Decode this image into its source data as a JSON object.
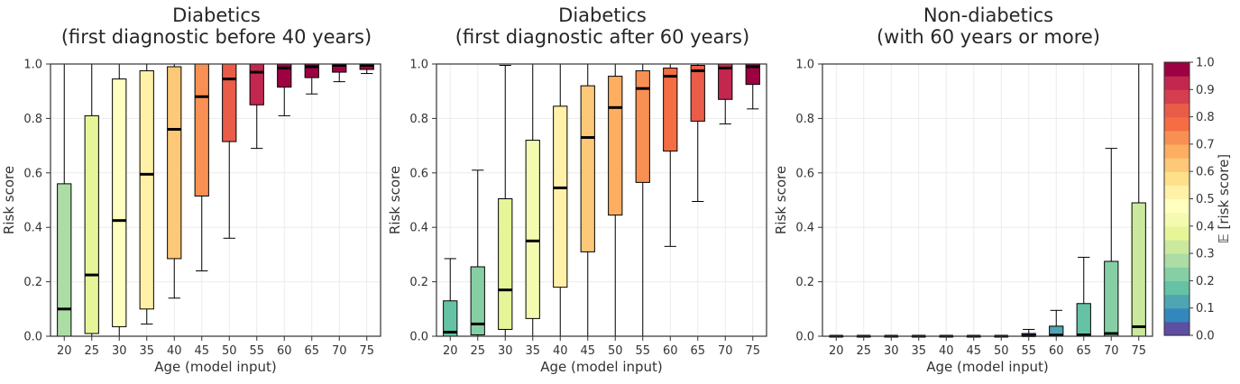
{
  "chart_data": [
    {
      "type": "box",
      "title_lines": [
        "Diabetics",
        "(first diagnostic before 40 years)"
      ],
      "xlabel": "Age (model input)",
      "ylabel": "Risk score",
      "ylim": [
        0,
        1
      ],
      "yticks": [
        "0.0",
        "0.2",
        "0.4",
        "0.6",
        "0.8",
        "1.0"
      ],
      "grid": true,
      "categories": [
        "20",
        "25",
        "30",
        "35",
        "40",
        "45",
        "50",
        "55",
        "60",
        "65",
        "70",
        "75"
      ],
      "boxes": [
        {
          "min": 0.0,
          "q1": 0.0,
          "median": 0.1,
          "q3": 0.56,
          "max": 1.0,
          "mean": 0.26
        },
        {
          "min": 0.0,
          "q1": 0.01,
          "median": 0.225,
          "q3": 0.81,
          "max": 1.0,
          "mean": 0.37
        },
        {
          "min": 0.0,
          "q1": 0.035,
          "median": 0.425,
          "q3": 0.945,
          "max": 1.0,
          "mean": 0.46
        },
        {
          "min": 0.045,
          "q1": 0.1,
          "median": 0.595,
          "q3": 0.975,
          "max": 1.0,
          "mean": 0.52
        },
        {
          "min": 0.14,
          "q1": 0.285,
          "median": 0.76,
          "q3": 0.99,
          "max": 1.0,
          "mean": 0.61
        },
        {
          "min": 0.24,
          "q1": 0.515,
          "median": 0.88,
          "q3": 1.0,
          "max": 1.0,
          "mean": 0.72
        },
        {
          "min": 0.36,
          "q1": 0.715,
          "median": 0.945,
          "q3": 1.0,
          "max": 1.0,
          "mean": 0.83
        },
        {
          "min": 0.69,
          "q1": 0.85,
          "median": 0.97,
          "q3": 1.0,
          "max": 1.0,
          "mean": 0.91
        },
        {
          "min": 0.81,
          "q1": 0.915,
          "median": 0.985,
          "q3": 1.0,
          "max": 1.0,
          "mean": 0.95
        },
        {
          "min": 0.89,
          "q1": 0.95,
          "median": 0.99,
          "q3": 1.0,
          "max": 1.0,
          "mean": 0.97
        },
        {
          "min": 0.935,
          "q1": 0.97,
          "median": 0.995,
          "q3": 1.0,
          "max": 1.0,
          "mean": 0.98
        },
        {
          "min": 0.965,
          "q1": 0.98,
          "median": 0.995,
          "q3": 1.0,
          "max": 1.0,
          "mean": 0.99
        }
      ]
    },
    {
      "type": "box",
      "title_lines": [
        "Diabetics",
        "(first diagnostic after 60 years)"
      ],
      "xlabel": "Age (model input)",
      "ylabel": "Risk score",
      "ylim": [
        0,
        1
      ],
      "yticks": [
        "0.0",
        "0.2",
        "0.4",
        "0.6",
        "0.8",
        "1.0"
      ],
      "grid": true,
      "categories": [
        "20",
        "25",
        "30",
        "35",
        "40",
        "45",
        "50",
        "55",
        "60",
        "65",
        "70",
        "75"
      ],
      "boxes": [
        {
          "min": 0.0,
          "q1": 0.0,
          "median": 0.015,
          "q3": 0.13,
          "max": 0.285,
          "mean": 0.16
        },
        {
          "min": 0.0,
          "q1": 0.005,
          "median": 0.045,
          "q3": 0.255,
          "max": 0.61,
          "mean": 0.23
        },
        {
          "min": 0.0,
          "q1": 0.025,
          "median": 0.17,
          "q3": 0.505,
          "max": 0.995,
          "mean": 0.36
        },
        {
          "min": 0.0,
          "q1": 0.065,
          "median": 0.35,
          "q3": 0.72,
          "max": 1.0,
          "mean": 0.43
        },
        {
          "min": 0.0,
          "q1": 0.18,
          "median": 0.545,
          "q3": 0.845,
          "max": 1.0,
          "mean": 0.53
        },
        {
          "min": 0.0,
          "q1": 0.31,
          "median": 0.73,
          "q3": 0.92,
          "max": 1.0,
          "mean": 0.62
        },
        {
          "min": 0.0,
          "q1": 0.445,
          "median": 0.84,
          "q3": 0.955,
          "max": 1.0,
          "mean": 0.67
        },
        {
          "min": 0.0,
          "q1": 0.565,
          "median": 0.91,
          "q3": 0.975,
          "max": 1.0,
          "mean": 0.71
        },
        {
          "min": 0.33,
          "q1": 0.68,
          "median": 0.955,
          "q3": 0.985,
          "max": 1.0,
          "mean": 0.79
        },
        {
          "min": 0.495,
          "q1": 0.79,
          "median": 0.975,
          "q3": 0.995,
          "max": 1.0,
          "mean": 0.84
        },
        {
          "min": 0.78,
          "q1": 0.87,
          "median": 0.985,
          "q3": 1.0,
          "max": 1.0,
          "mean": 0.93
        },
        {
          "min": 0.835,
          "q1": 0.925,
          "median": 0.99,
          "q3": 1.0,
          "max": 1.0,
          "mean": 0.95
        }
      ]
    },
    {
      "type": "box",
      "title_lines": [
        "Non-diabetics",
        "(with 60 years or more)"
      ],
      "xlabel": "Age (model input)",
      "ylabel": "Risk score",
      "ylim": [
        0,
        1
      ],
      "yticks": [
        "0.0",
        "0.2",
        "0.4",
        "0.6",
        "0.8",
        "1.0"
      ],
      "grid": true,
      "categories": [
        "20",
        "25",
        "30",
        "35",
        "40",
        "45",
        "50",
        "55",
        "60",
        "65",
        "70",
        "75"
      ],
      "boxes": [
        {
          "min": 0.0,
          "q1": 0.0,
          "median": 0.0,
          "q3": 0.0,
          "max": 0.0,
          "mean": 0.01
        },
        {
          "min": 0.0,
          "q1": 0.0,
          "median": 0.0,
          "q3": 0.0,
          "max": 0.0,
          "mean": 0.01
        },
        {
          "min": 0.0,
          "q1": 0.0,
          "median": 0.0,
          "q3": 0.0,
          "max": 0.0,
          "mean": 0.01
        },
        {
          "min": 0.0,
          "q1": 0.0,
          "median": 0.0,
          "q3": 0.0,
          "max": 0.0,
          "mean": 0.01
        },
        {
          "min": 0.0,
          "q1": 0.0,
          "median": 0.0,
          "q3": 0.0,
          "max": 0.0,
          "mean": 0.01
        },
        {
          "min": 0.0,
          "q1": 0.0,
          "median": 0.0,
          "q3": 0.0,
          "max": 0.0,
          "mean": 0.01
        },
        {
          "min": 0.0,
          "q1": 0.0,
          "median": 0.0,
          "q3": 0.0,
          "max": 0.0,
          "mean": 0.01
        },
        {
          "min": 0.0,
          "q1": 0.0,
          "median": 0.002,
          "q3": 0.01,
          "max": 0.025,
          "mean": 0.02
        },
        {
          "min": 0.0,
          "q1": 0.0,
          "median": 0.004,
          "q3": 0.037,
          "max": 0.095,
          "mean": 0.14
        },
        {
          "min": 0.0,
          "q1": 0.0,
          "median": 0.005,
          "q3": 0.12,
          "max": 0.29,
          "mean": 0.18
        },
        {
          "min": 0.0,
          "q1": 0.0,
          "median": 0.01,
          "q3": 0.275,
          "max": 0.69,
          "mean": 0.22
        },
        {
          "min": 0.0,
          "q1": 0.0,
          "median": 0.035,
          "q3": 0.49,
          "max": 1.0,
          "mean": 0.31
        }
      ]
    }
  ],
  "colorbar": {
    "label": "𝔼 [risk score]",
    "ticks": [
      "0.0",
      "0.1",
      "0.2",
      "0.3",
      "0.4",
      "0.5",
      "0.6",
      "0.7",
      "0.8",
      "0.9",
      "1.0"
    ],
    "colors": [
      "#5e4fa2",
      "#3288bd",
      "#4fa5b2",
      "#66c2a5",
      "#86cfa5",
      "#abdda4",
      "#cbe99d",
      "#e6f598",
      "#f4fab0",
      "#ffffbf",
      "#fff1a8",
      "#fee08b",
      "#fdc877",
      "#fdae61",
      "#f89053",
      "#f46d43",
      "#e95c47",
      "#d53e4f",
      "#c3274f",
      "#9e0142"
    ]
  }
}
